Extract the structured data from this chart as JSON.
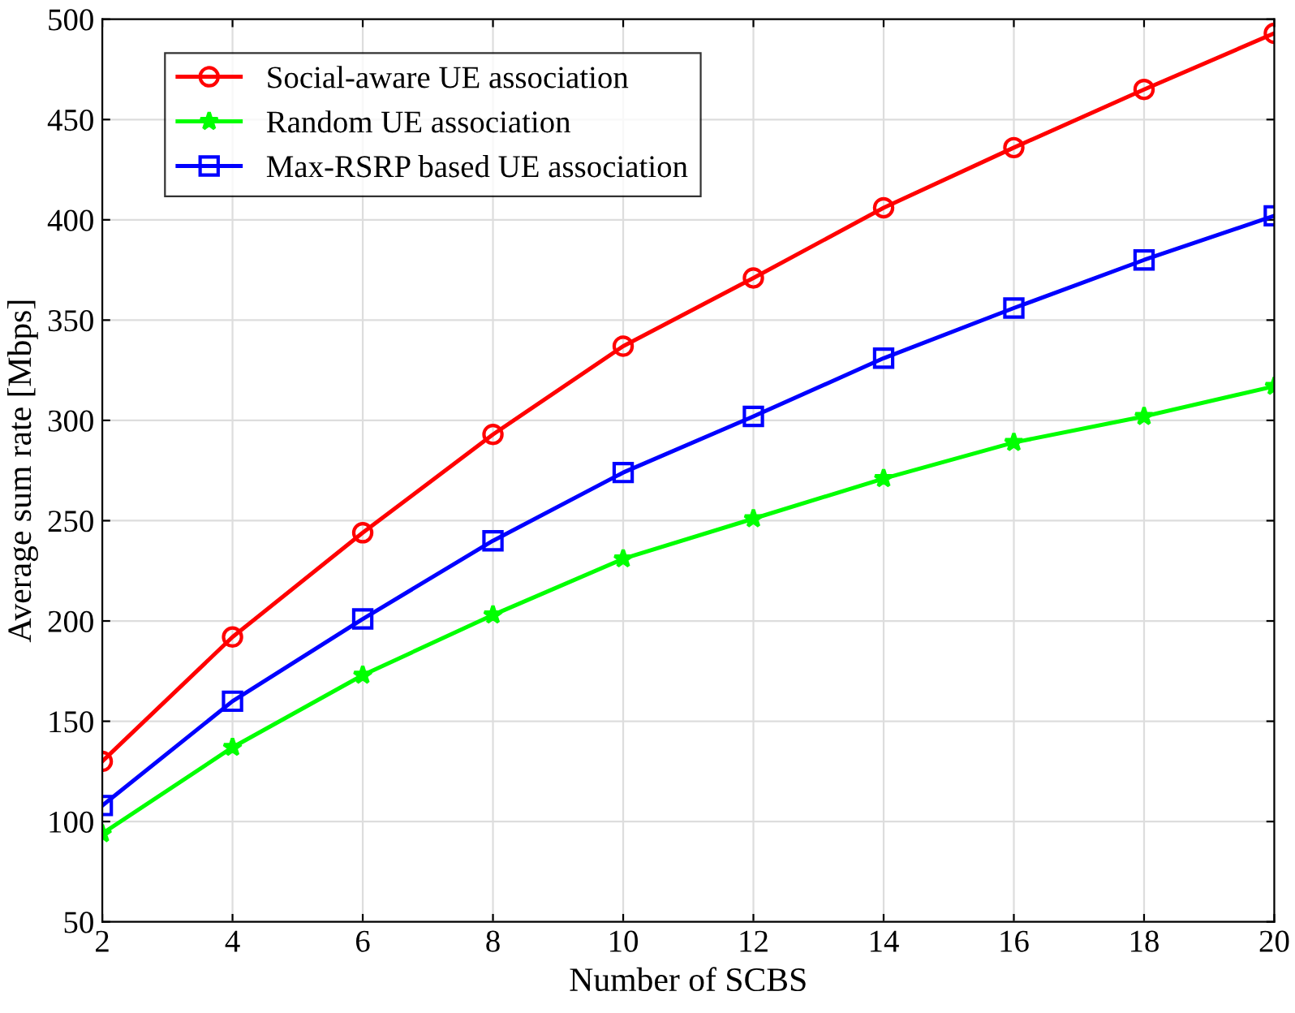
{
  "chart_data": {
    "type": "line",
    "xlabel": "Number of SCBS",
    "ylabel": "Average sum rate [Mbps]",
    "x": [
      2,
      4,
      6,
      8,
      10,
      12,
      14,
      16,
      18,
      20
    ],
    "series": [
      {
        "name": "Social-aware UE association",
        "color": "#ff0000",
        "marker": "circle",
        "values": [
          130,
          192,
          244,
          293,
          337,
          371,
          406,
          436,
          465,
          493
        ]
      },
      {
        "name": "Random UE association",
        "color": "#00ff00",
        "marker": "star",
        "values": [
          94,
          137,
          173,
          203,
          231,
          251,
          271,
          289,
          302,
          317
        ]
      },
      {
        "name": "Max-RSRP based UE association",
        "color": "#0000ff",
        "marker": "square",
        "values": [
          108,
          160,
          201,
          240,
          274,
          302,
          331,
          356,
          380,
          402
        ]
      }
    ],
    "xlim": [
      2,
      20
    ],
    "xticks": [
      2,
      4,
      6,
      8,
      10,
      12,
      14,
      16,
      18,
      20
    ],
    "ylim": [
      50,
      500
    ],
    "yticks": [
      50,
      100,
      150,
      200,
      250,
      300,
      350,
      400,
      450,
      500
    ],
    "grid": true,
    "legend": "top left",
    "line_style": "solid"
  }
}
